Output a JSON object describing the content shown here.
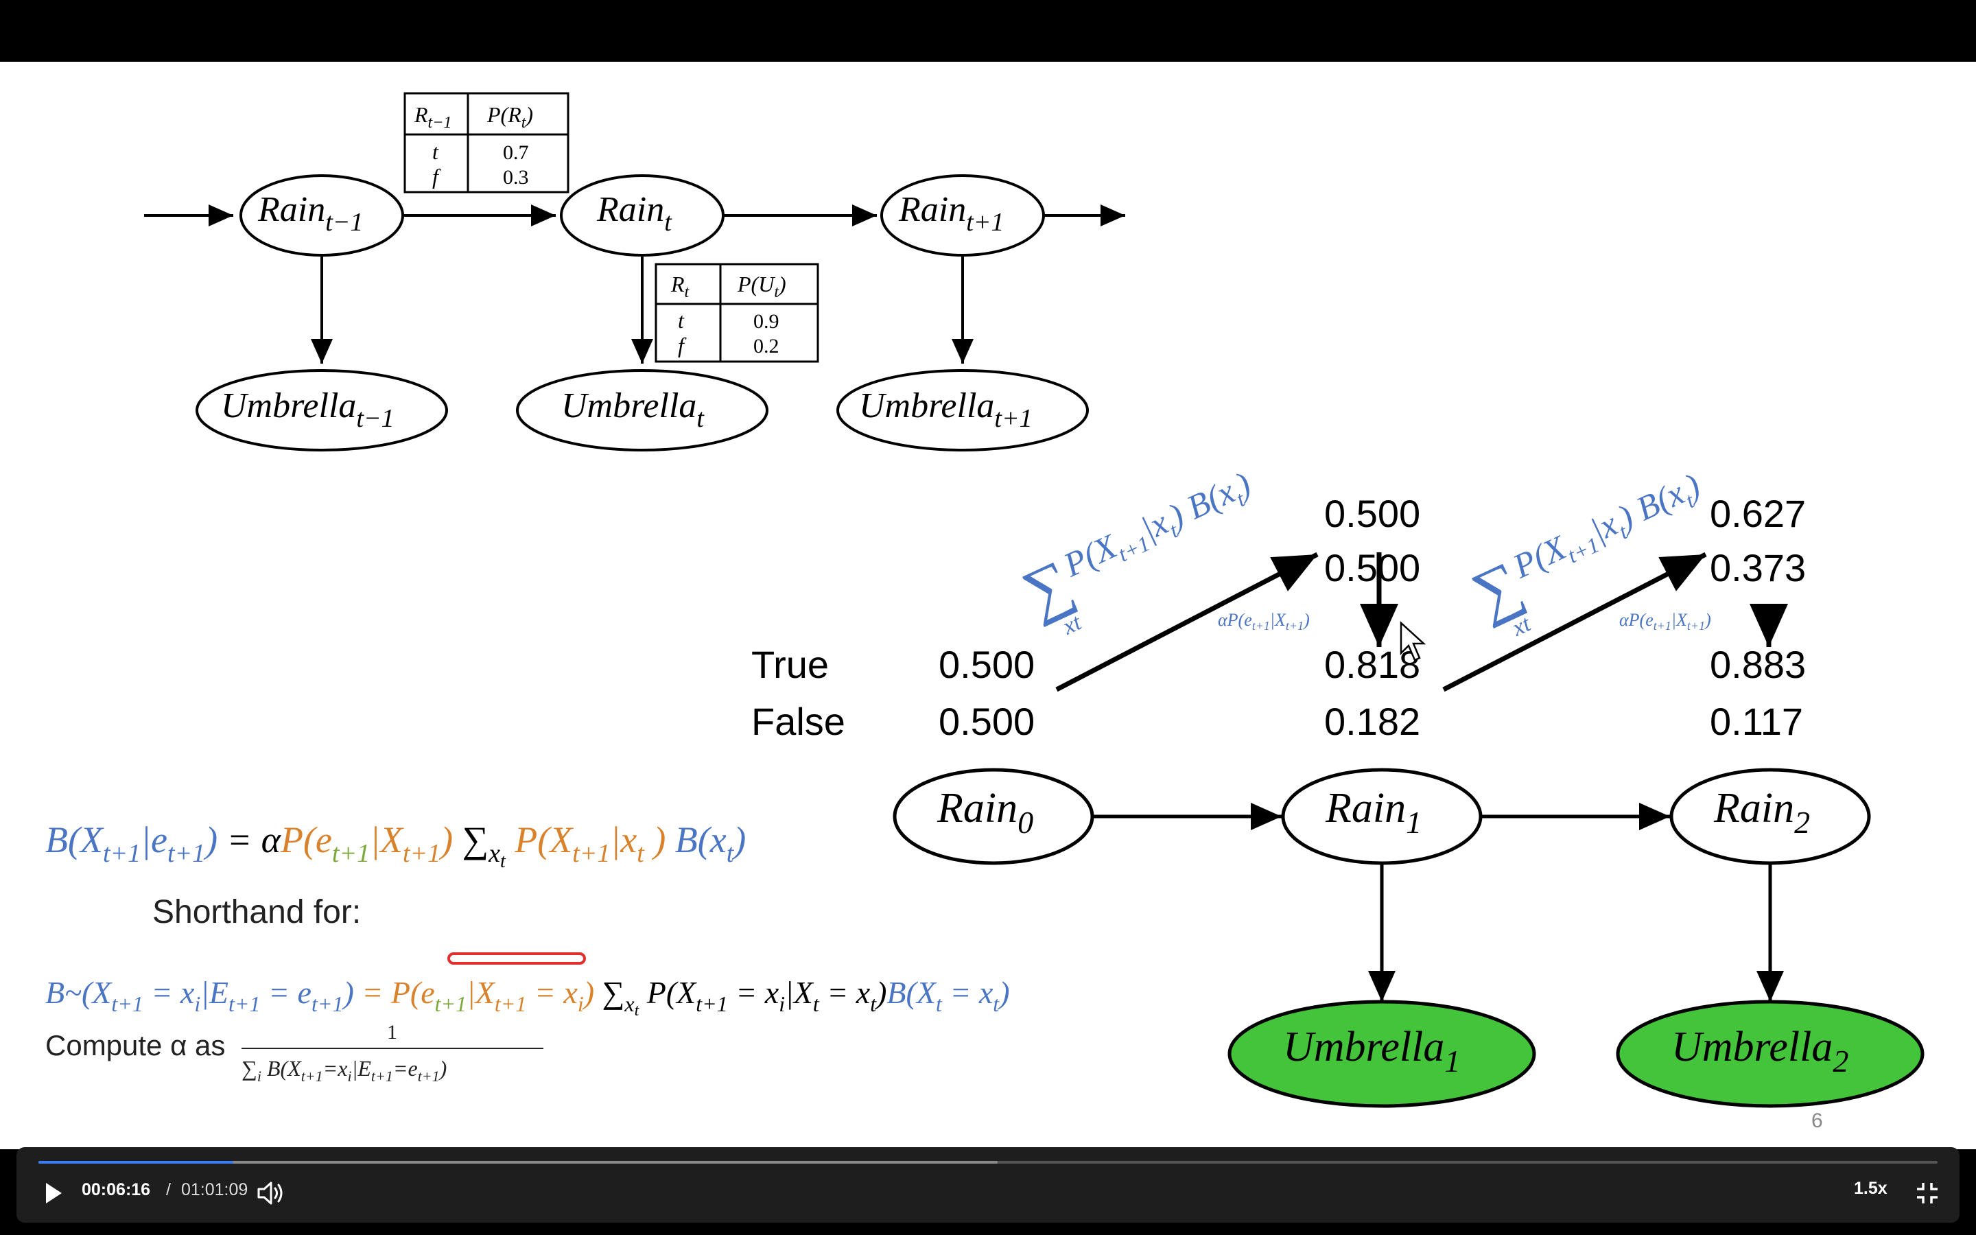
{
  "slide": {
    "page_number": "6",
    "dbn": {
      "nodes": [
        {
          "base": "Rain",
          "sub": "t−1"
        },
        {
          "base": "Rain",
          "sub": "t"
        },
        {
          "base": "Rain",
          "sub": "t+1"
        },
        {
          "base": "Umbrella",
          "sub": "t−1"
        },
        {
          "base": "Umbrella",
          "sub": "t"
        },
        {
          "base": "Umbrella",
          "sub": "t+1"
        }
      ],
      "transition_table": {
        "headers": [
          {
            "base": "R",
            "sub": "t−1"
          },
          {
            "text": "P(R",
            "sub": "t",
            "close": ")"
          }
        ],
        "rows": [
          [
            "t",
            "0.7"
          ],
          [
            "f",
            "0.3"
          ]
        ]
      },
      "sensor_table": {
        "headers": [
          {
            "base": "R",
            "sub": "t"
          },
          {
            "text": "P(U",
            "sub": "t",
            "close": ")"
          }
        ],
        "rows": [
          [
            "t",
            "0.9"
          ],
          [
            "f",
            "0.2"
          ]
        ]
      }
    },
    "filtering": {
      "row_labels": [
        "True",
        "False"
      ],
      "initial": [
        "0.500",
        "0.500"
      ],
      "predicted_1": [
        "0.500",
        "0.500"
      ],
      "updated_1": [
        "0.818",
        "0.182"
      ],
      "predicted_2": [
        "0.627",
        "0.373"
      ],
      "updated_2": [
        "0.883",
        "0.117"
      ],
      "rain_nodes": [
        {
          "base": "Rain",
          "sub": "0"
        },
        {
          "base": "Rain",
          "sub": "1"
        },
        {
          "base": "Rain",
          "sub": "2"
        }
      ],
      "umbrella_nodes": [
        {
          "base": "Umbrella",
          "sub": "1"
        },
        {
          "base": "Umbrella",
          "sub": "2"
        }
      ],
      "umbrella_fill": "#44c43a",
      "annotation_sum": {
        "sigma": "∑",
        "sub": "xt",
        "text": "P(X",
        "sub2": "t+1",
        "mid": "|x",
        "sub3": "t",
        "end": ") B(x",
        "sub4": "t",
        "close": ")"
      },
      "annotation_alpha": {
        "text": "αP(e",
        "sub": "t+1",
        "mid": "|X",
        "sub2": "t+1",
        "close": ")"
      }
    },
    "equations": {
      "belief_update": {
        "b_open": "B(X",
        "b_sub1": "t+1",
        "b_bar": "|e",
        "b_sub2": "t+1",
        "b_close": ")",
        "eq": " = α",
        "p1": "P(e",
        "p1_sub": "t+1",
        "p1_bar": "|X",
        "p1_sub2": "t+1",
        "p1_close": ")",
        "sum": " ∑",
        "sum_sub": "x",
        "sum_sub2": "t",
        "p2": " P(X",
        "p2_sub": "t+1",
        "p2_bar": "|x",
        "p2_sub2": "t",
        "p2_close": " )",
        "b2": " B(x",
        "b2_sub": "t",
        "b2_close": ")"
      },
      "shorthand_label": "Shorthand for:",
      "shorthand": {
        "b": "B~(X",
        "b_sub": "t+1",
        "b_mid": " = x",
        "b_sub2": "i",
        "b_bar": "|E",
        "b_sub3": "t+1",
        "b_eq": " = e",
        "b_sub4": "t+1",
        "b_close": ")",
        "eq": " = ",
        "p1": "P(e",
        "p1_sub": "t+1",
        "p1_bar": "|X",
        "p1_sub2": "t+1",
        "p1_eq": " = x",
        "p1_sub3": "i",
        "p1_close": ")",
        "sum": " ∑",
        "sum_sub": "x",
        "sum_sub2": "t",
        "p2": " P(X",
        "p2_sub": "t+1",
        "p2_eq": " = x",
        "p2_sub2": "i",
        "p2_bar": "|X",
        "p2_sub3": "t",
        "p2_eq2": " = x",
        "p2_sub4": "t",
        "p2_close": ")",
        "b2": "B(X",
        "b2_sub": "t",
        "b2_eq": " = x",
        "b2_sub2": "t",
        "b2_close": ")"
      },
      "alpha_label": "Compute α as",
      "alpha_numerator": "1",
      "alpha_denominator": {
        "sum": "∑",
        "sum_sub": "i",
        "b": " B(X",
        "b_sub": "t+1",
        "eq": "=x",
        "sub2": "i",
        "bar": "|E",
        "sub3": "t+1",
        "eq2": "=e",
        "sub4": "t+1",
        "close": ")"
      }
    },
    "colors": {
      "blue": "#4a74c4",
      "orange": "#d9822b",
      "green": "#7aa83a",
      "highlight": "#e03030"
    }
  },
  "player": {
    "current_time": "00:06:16",
    "separator": "/",
    "total_time": "01:01:09",
    "speed": "1.5x",
    "progress": 0.1025,
    "buffered": 0.505,
    "play_icon": "play-icon",
    "volume_icon": "volume-icon",
    "exit_fullscreen_icon": "exit-fullscreen-icon"
  }
}
